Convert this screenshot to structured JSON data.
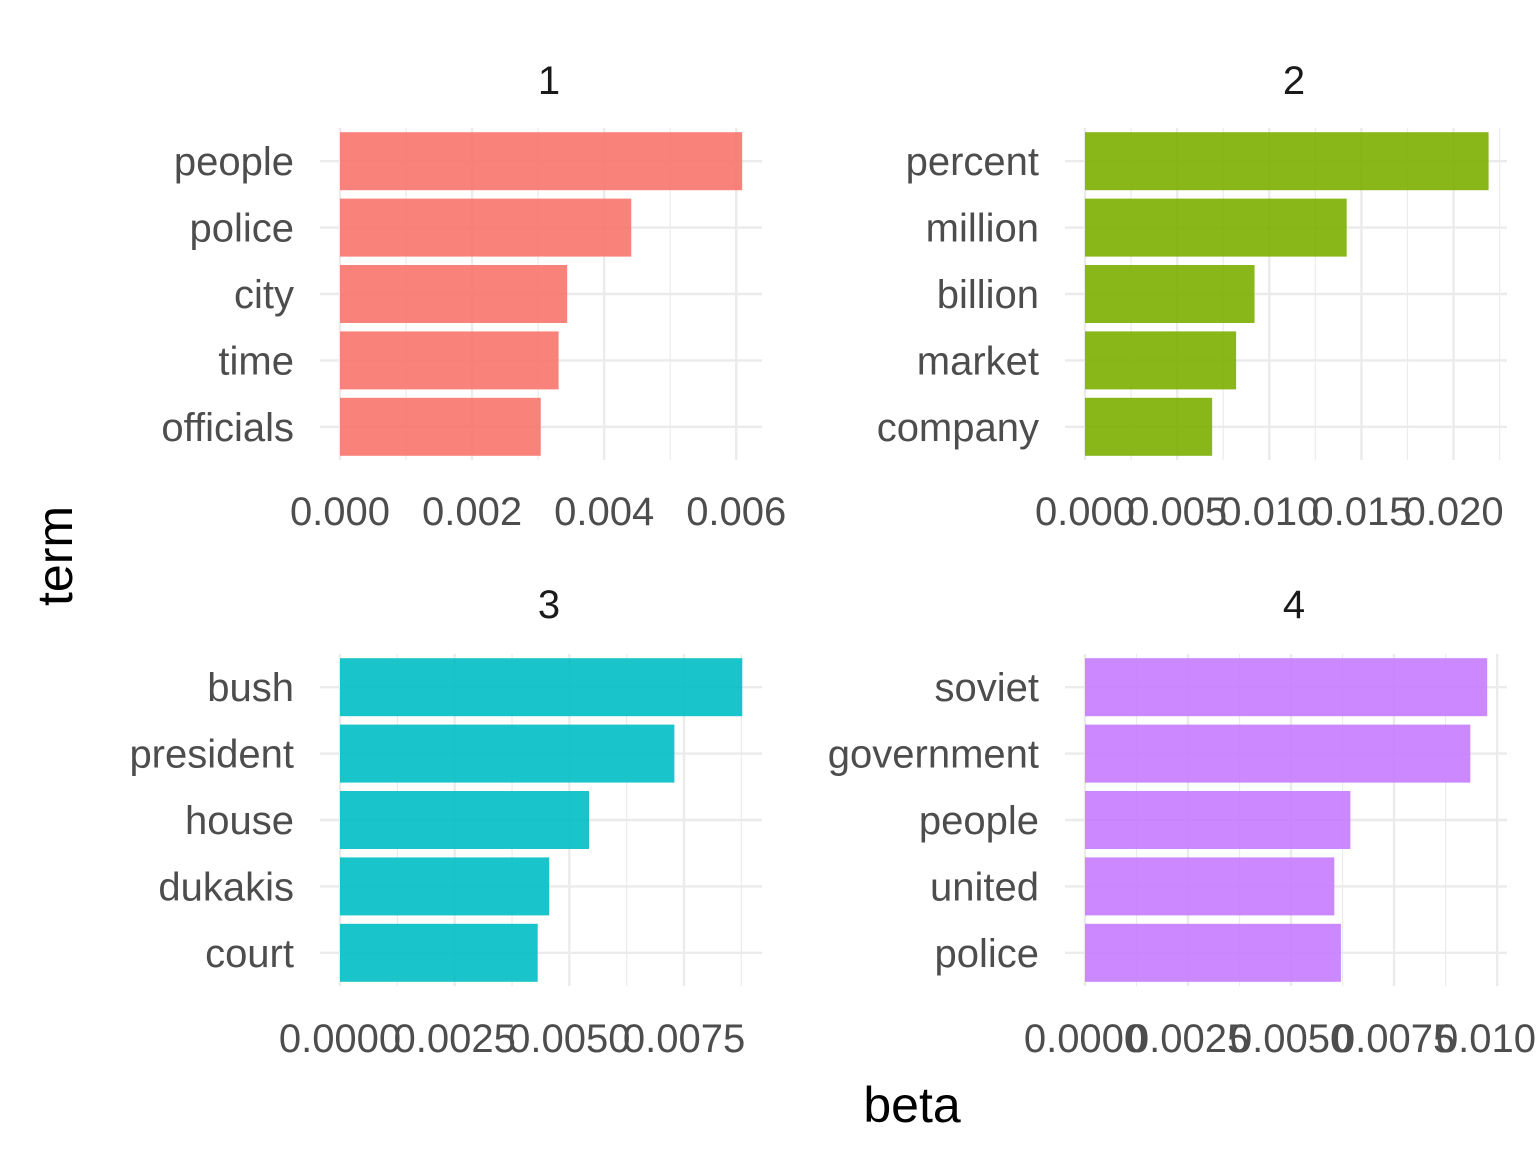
{
  "chart_data": {
    "type": "bar",
    "orientation": "horizontal",
    "facets": [
      "1",
      "2",
      "3",
      "4"
    ],
    "xlabel": "beta",
    "ylabel": "term",
    "grid": true,
    "legend": "none",
    "panels": [
      {
        "facet": "1",
        "color": "#F8766D",
        "categories": [
          "people",
          "police",
          "city",
          "time",
          "officials"
        ],
        "values": [
          0.00609,
          0.00441,
          0.00344,
          0.00331,
          0.00304
        ],
        "xticks": [
          0,
          0.002,
          0.004,
          0.006
        ],
        "xtick_labels": [
          "0.000",
          "0.002",
          "0.004",
          "0.006"
        ],
        "xlim": [
          0,
          0.00639
        ]
      },
      {
        "facet": "2",
        "color": "#7CAE00",
        "categories": [
          "percent",
          "million",
          "billion",
          "market",
          "company"
        ],
        "values": [
          0.0219,
          0.0142,
          0.0092,
          0.0082,
          0.0069
        ],
        "xticks": [
          0,
          0.005,
          0.01,
          0.015,
          0.02
        ],
        "xtick_labels": [
          "0.000",
          "0.005",
          "0.010",
          "0.015",
          "0.020"
        ],
        "xlim": [
          0,
          0.0229
        ]
      },
      {
        "facet": "3",
        "color": "#00BFC4",
        "categories": [
          "bush",
          "president",
          "house",
          "dukakis",
          "court"
        ],
        "values": [
          0.00877,
          0.00729,
          0.00543,
          0.00456,
          0.00431
        ],
        "xticks": [
          0,
          0.0025,
          0.005,
          0.0075
        ],
        "xtick_labels": [
          "0.0000",
          "0.0025",
          "0.0050",
          "0.0075"
        ],
        "xlim": [
          0,
          0.0092
        ]
      },
      {
        "facet": "4",
        "color": "#C77CFF",
        "categories": [
          "soviet",
          "government",
          "people",
          "united",
          "police"
        ],
        "values": [
          0.00976,
          0.00935,
          0.00644,
          0.00605,
          0.00621
        ],
        "xticks": [
          0,
          0.0025,
          0.005,
          0.0075,
          0.01
        ],
        "xtick_labels": [
          "0.0000",
          "0.0025",
          "0.0050",
          "0.0075",
          "0.0100"
        ],
        "xlim": [
          0,
          0.01024
        ]
      }
    ]
  }
}
